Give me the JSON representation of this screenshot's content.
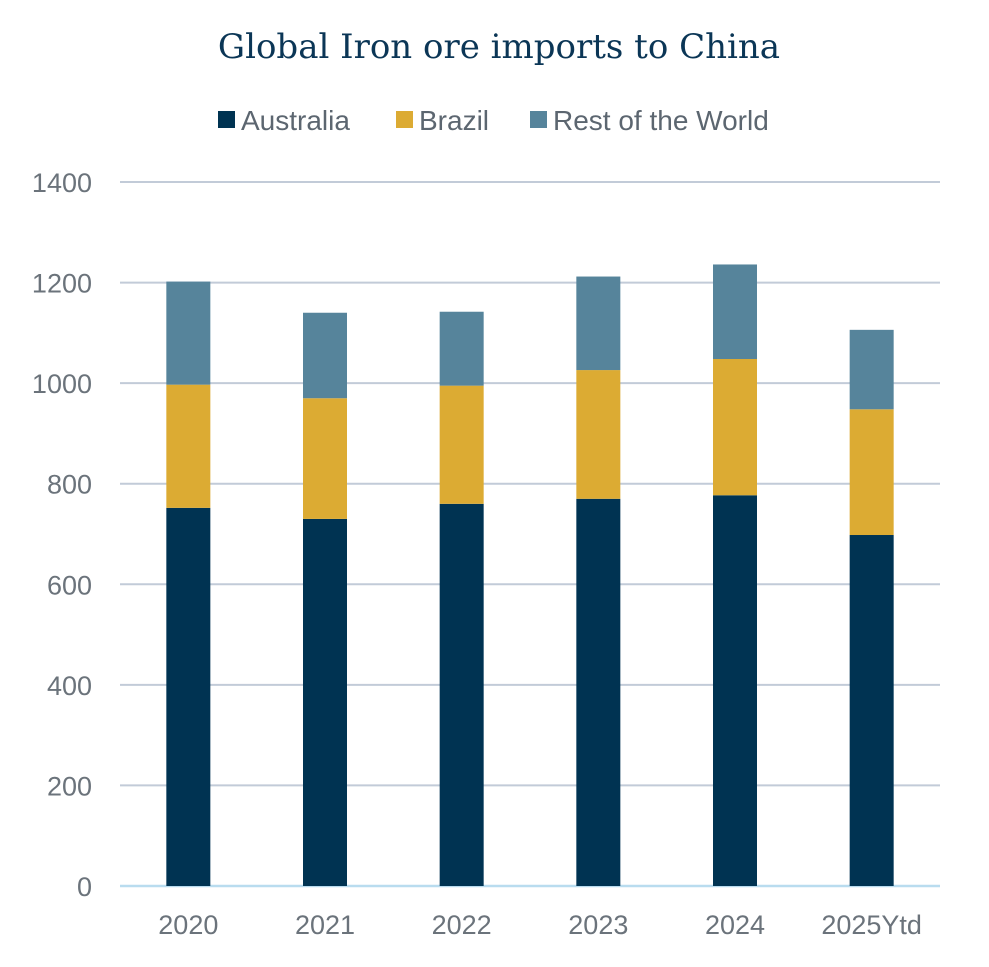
{
  "chart_data": {
    "type": "bar",
    "stacked": true,
    "title": "Global Iron ore imports to China",
    "xlabel": "",
    "ylabel": "",
    "categories": [
      "2020",
      "2021",
      "2022",
      "2023",
      "2024",
      "2025Ytd"
    ],
    "series": [
      {
        "name": "Australia",
        "color": "#003352",
        "values": [
          752,
          730,
          760,
          770,
          777,
          698
        ]
      },
      {
        "name": "Brazil",
        "color": "#dcab33",
        "values": [
          245,
          240,
          235,
          256,
          271,
          250
        ]
      },
      {
        "name": "Rest of the World",
        "color": "#56849b",
        "values": [
          205,
          170,
          147,
          186,
          188,
          158
        ]
      }
    ],
    "ylim": [
      0,
      1400
    ],
    "yticks": [
      0,
      200,
      400,
      600,
      800,
      1000,
      1200,
      1400
    ],
    "grid": true,
    "legend_position": "top-center"
  }
}
